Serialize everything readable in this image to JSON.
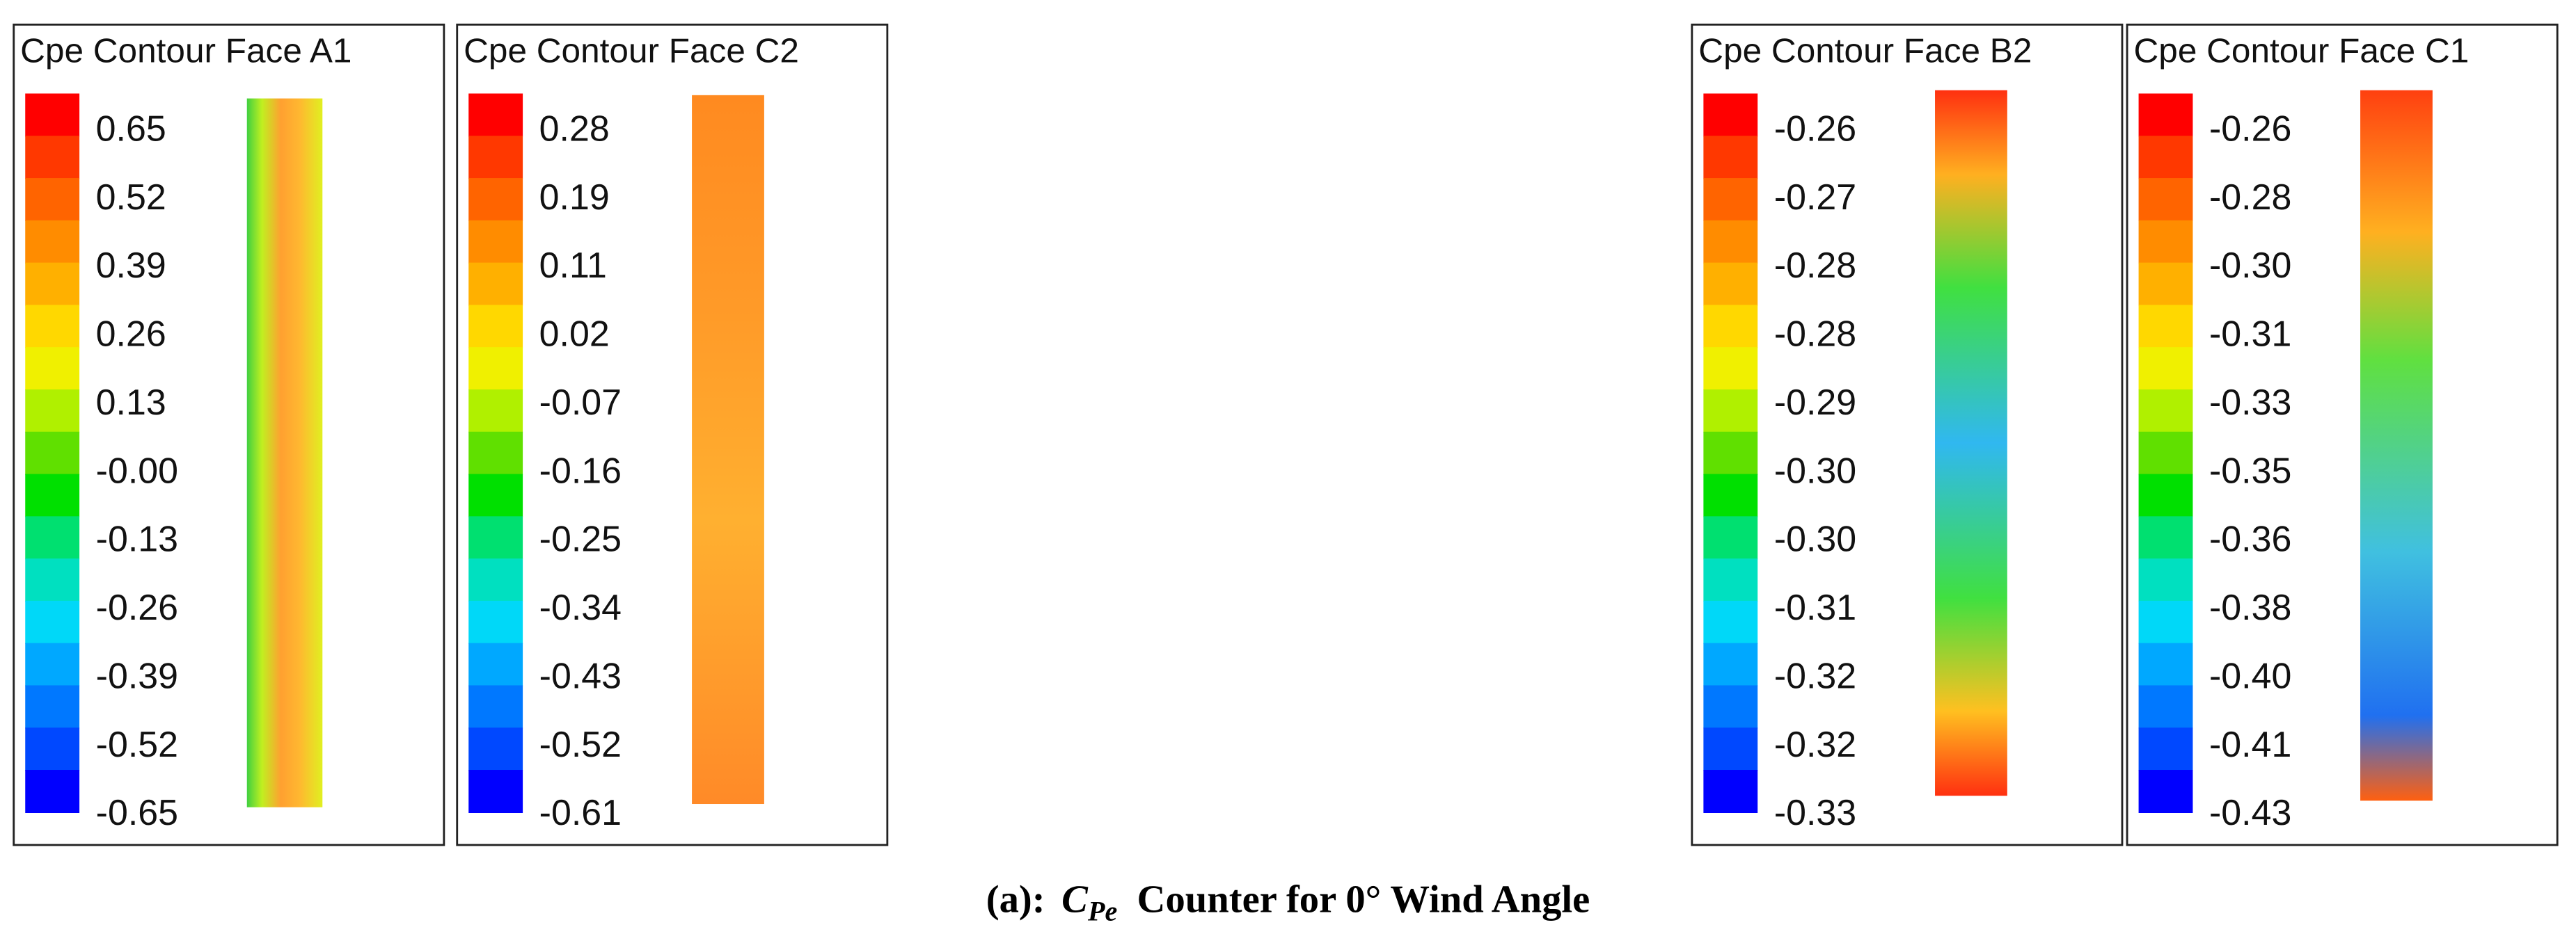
{
  "panels": [
    {
      "title": "Cpe Contour Face A1",
      "levels": [
        "0.65",
        "0.52",
        "0.39",
        "0.26",
        "0.13",
        "-0.00",
        "-0.13",
        "-0.26",
        "-0.39",
        "-0.52",
        "-0.65"
      ]
    },
    {
      "title": "Cpe Contour Face C2",
      "levels": [
        "0.28",
        "0.19",
        "0.11",
        "0.02",
        "-0.07",
        "-0.16",
        "-0.25",
        "-0.34",
        "-0.43",
        "-0.52",
        "-0.61"
      ]
    },
    {
      "title": "Cpe Contour Face B2",
      "levels": [
        "-0.26",
        "-0.27",
        "-0.28",
        "-0.28",
        "-0.29",
        "-0.30",
        "-0.30",
        "-0.31",
        "-0.32",
        "-0.32",
        "-0.33"
      ]
    },
    {
      "title": "Cpe Contour Face C1",
      "levels": [
        "-0.26",
        "-0.28",
        "-0.30",
        "-0.31",
        "-0.33",
        "-0.35",
        "-0.36",
        "-0.38",
        "-0.40",
        "-0.41",
        "-0.43"
      ]
    }
  ],
  "caption": {
    "label": "(a):",
    "symbol": "C",
    "subscript": "Pe",
    "text": "Counter for 0° Wind Angle"
  }
}
